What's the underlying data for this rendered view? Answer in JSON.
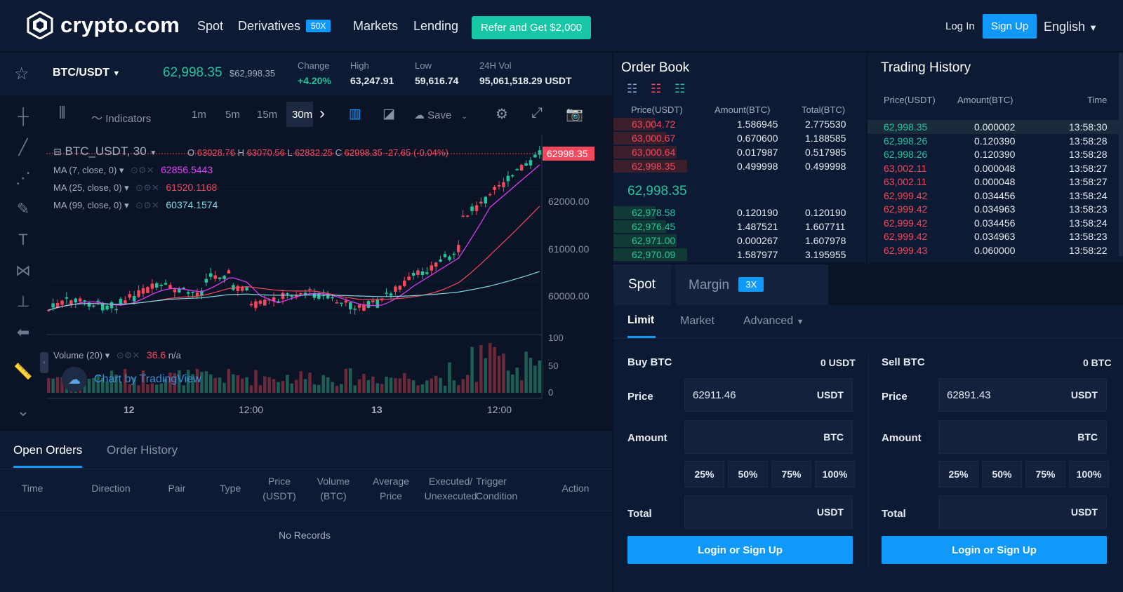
{
  "nav": {
    "logo_text": "crypto.com",
    "links": [
      "Spot",
      "Derivatives",
      "Markets",
      "Lending"
    ],
    "derivatives_badge": "50X",
    "refer_label": "Refer and Get $2,000",
    "login_label": "Log In",
    "signup_label": "Sign Up",
    "language": "English"
  },
  "ticker": {
    "pair": "BTC/USDT",
    "last_price": "62,998.35",
    "last_price_usd": "$62,998.35",
    "change_label": "Change",
    "change_value": "+4.20%",
    "high_label": "High",
    "high_value": "63,247.91",
    "low_label": "Low",
    "low_value": "59,616.74",
    "vol_label": "24H Vol",
    "vol_value": "95,061,518.29 USDT"
  },
  "toolbar": {
    "intervals": [
      "1m",
      "5m",
      "15m",
      "30m"
    ],
    "indicators_label": "Indicators",
    "save_label": "Save"
  },
  "chart": {
    "symbol_label": "BTC_USDT, 30",
    "ohlc": {
      "O": "63028.76",
      "H": "63070.56",
      "L": "62832.25",
      "C": "62998.35",
      "change": "-27.65 (-0.04%)"
    },
    "ma": [
      {
        "label": "MA (7, close, 0)",
        "value": "62856.5443",
        "color": "#e040fb"
      },
      {
        "label": "MA (25, close, 0)",
        "value": "61520.1168",
        "color": "#f4485c"
      },
      {
        "label": "MA (99, close, 0)",
        "value": "60374.1574",
        "color": "#7fd8e0"
      }
    ],
    "last_price_tag": "62998.35",
    "price_ticks": [
      "62000.00",
      "61000.00",
      "60000.00"
    ],
    "volume_label": "Volume (20)",
    "volume_value": "36.6",
    "volume_na": "n/a",
    "volume_ticks": [
      "100",
      "50",
      "0"
    ],
    "time_ticks": [
      "12",
      "12:00",
      "13",
      "12:00"
    ],
    "watermark": "Chart by TradingView"
  },
  "orders": {
    "tabs": [
      "Open Orders",
      "Order History"
    ],
    "columns": [
      "Time",
      "Direction",
      "Pair",
      "Type",
      "Price (USDT)",
      "Volume (BTC)",
      "Average Price",
      "Executed/ Unexecuted",
      "Trigger Condition",
      "Action"
    ],
    "empty": "No Records"
  },
  "orderbook": {
    "title": "Order Book",
    "headers": [
      "Price(USDT)",
      "Amount(BTC)",
      "Total(BTC)"
    ],
    "asks": [
      [
        "63,004.72",
        "1.586945",
        "2.775530"
      ],
      [
        "63,000.67",
        "0.670600",
        "1.188585"
      ],
      [
        "63,000.64",
        "0.017987",
        "0.517985"
      ],
      [
        "62,998.35",
        "0.499998",
        "0.499998"
      ]
    ],
    "mid_price": "62,998.35",
    "bids": [
      [
        "62,978.58",
        "0.120190",
        "0.120190"
      ],
      [
        "62,976.45",
        "1.487521",
        "1.607711"
      ],
      [
        "62,971.00",
        "0.000267",
        "1.607978"
      ],
      [
        "62,970.09",
        "1.587977",
        "3.195955"
      ]
    ]
  },
  "history": {
    "title": "Trading History",
    "headers": [
      "Price(USDT)",
      "Amount(BTC)",
      "Time"
    ],
    "rows": [
      [
        "62,998.35",
        "0.000002",
        "13:58:30",
        "green"
      ],
      [
        "62,998.26",
        "0.120390",
        "13:58:28",
        "green"
      ],
      [
        "62,998.26",
        "0.120390",
        "13:58:28",
        "green"
      ],
      [
        "63,002.11",
        "0.000048",
        "13:58:27",
        "red"
      ],
      [
        "63,002.11",
        "0.000048",
        "13:58:27",
        "red"
      ],
      [
        "62,999.42",
        "0.034456",
        "13:58:24",
        "red"
      ],
      [
        "62,999.42",
        "0.034963",
        "13:58:23",
        "red"
      ],
      [
        "62,999.42",
        "0.034456",
        "13:58:24",
        "red"
      ],
      [
        "62,999.42",
        "0.034963",
        "13:58:23",
        "red"
      ],
      [
        "62,999.43",
        "0.060000",
        "13:58:22",
        "red"
      ]
    ]
  },
  "trade": {
    "tabs": [
      "Spot",
      "Margin"
    ],
    "margin_badge": "3X",
    "order_types": [
      "Limit",
      "Market",
      "Advanced"
    ],
    "buy": {
      "title": "Buy BTC",
      "balance": "0 USDT",
      "price": "62911.46"
    },
    "sell": {
      "title": "Sell BTC",
      "balance": "0 BTC",
      "price": "62891.43"
    },
    "labels": {
      "price": "Price",
      "amount": "Amount",
      "total": "Total"
    },
    "units": {
      "usdt": "USDT",
      "btc": "BTC"
    },
    "percents": [
      "25%",
      "50%",
      "75%",
      "100%"
    ],
    "cta": "Login or Sign Up"
  }
}
